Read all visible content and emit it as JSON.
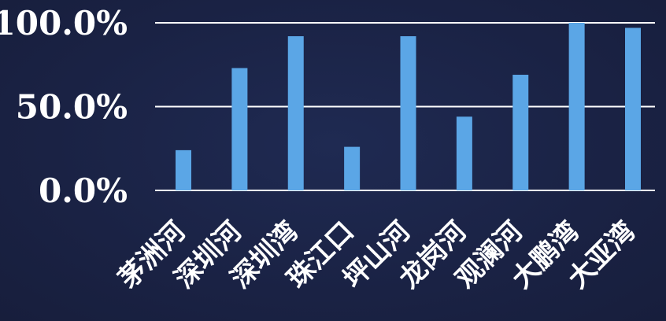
{
  "chart_data": {
    "type": "bar",
    "title": "",
    "xlabel": "",
    "ylabel": "",
    "categories": [
      "茅洲河",
      "深圳河",
      "深圳湾",
      "珠江口",
      "坪山河",
      "龙岗河",
      "观澜河",
      "大鹏湾",
      "大亚湾"
    ],
    "values": [
      24,
      73,
      92,
      26,
      92,
      44,
      69,
      100,
      97
    ],
    "ylim": [
      0,
      100
    ],
    "yticks": [
      "0.0%",
      "50.0%",
      "100.0%"
    ],
    "grid": true,
    "legend": "none",
    "colors": {
      "bar": "#5ba6e6",
      "background": "#1b2447",
      "grid": "#ffffff",
      "text": "#ffffff"
    }
  }
}
